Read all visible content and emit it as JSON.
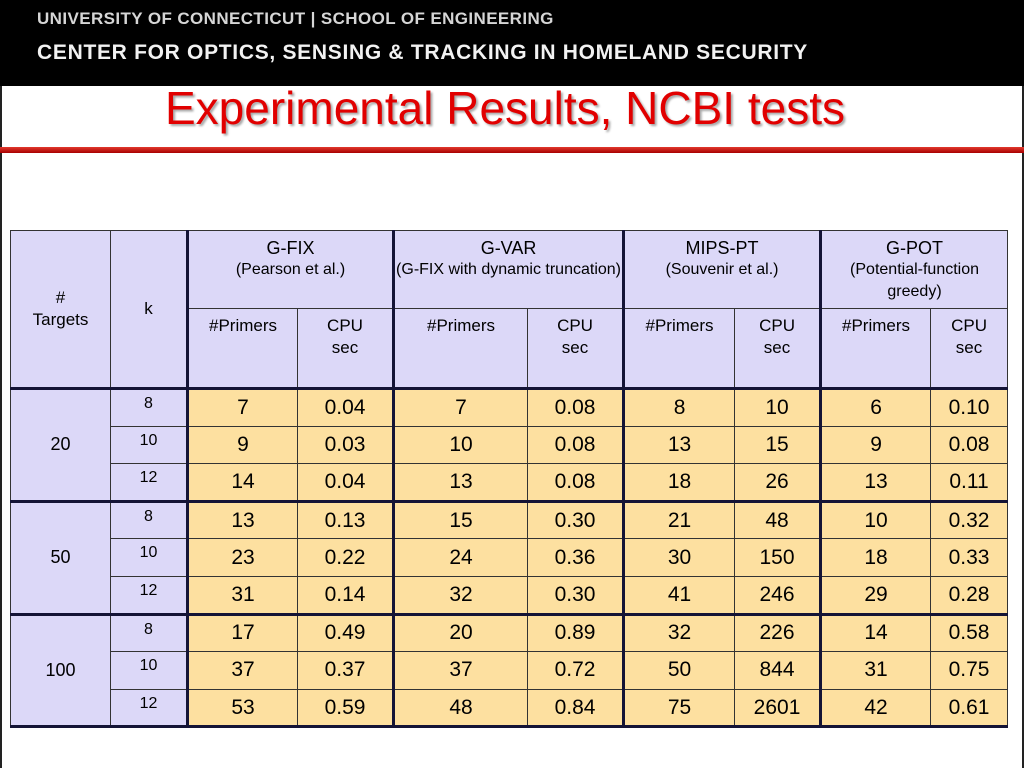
{
  "header": {
    "line1": "UNIVERSITY OF CONNECTICUT | SCHOOL OF ENGINEERING",
    "line2": "CENTER FOR OPTICS, SENSING & TRACKING IN HOMELAND SECURITY"
  },
  "title": "Experimental Results, NCBI tests",
  "colors": {
    "title": "#e10000",
    "header_bg": "#dcd8f8",
    "data_bg": "#fde0a0"
  },
  "table": {
    "head_targets": [
      "#",
      "Targets"
    ],
    "head_k": "k",
    "methods": [
      {
        "name": "G-FIX",
        "note": "(Pearson et al.)"
      },
      {
        "name": "G-VAR",
        "note": "(G-FIX with dynamic truncation)"
      },
      {
        "name": "MIPS-PT",
        "note": "(Souvenir et al.)"
      },
      {
        "name": "G-POT",
        "note": "(Potential-function greedy)"
      }
    ],
    "sub_primers": "#Primers",
    "sub_cpu": [
      "CPU",
      "sec"
    ],
    "groups": [
      {
        "targets": "20",
        "rows": [
          {
            "k": "8",
            "values": [
              "7",
              "0.04",
              "7",
              "0.08",
              "8",
              "10",
              "6",
              "0.10"
            ]
          },
          {
            "k": "10",
            "values": [
              "9",
              "0.03",
              "10",
              "0.08",
              "13",
              "15",
              "9",
              "0.08"
            ]
          },
          {
            "k": "12",
            "values": [
              "14",
              "0.04",
              "13",
              "0.08",
              "18",
              "26",
              "13",
              "0.11"
            ]
          }
        ]
      },
      {
        "targets": "50",
        "rows": [
          {
            "k": "8",
            "values": [
              "13",
              "0.13",
              "15",
              "0.30",
              "21",
              "48",
              "10",
              "0.32"
            ]
          },
          {
            "k": "10",
            "values": [
              "23",
              "0.22",
              "24",
              "0.36",
              "30",
              "150",
              "18",
              "0.33"
            ]
          },
          {
            "k": "12",
            "values": [
              "31",
              "0.14",
              "32",
              "0.30",
              "41",
              "246",
              "29",
              "0.28"
            ]
          }
        ]
      },
      {
        "targets": "100",
        "rows": [
          {
            "k": "8",
            "values": [
              "17",
              "0.49",
              "20",
              "0.89",
              "32",
              "226",
              "14",
              "0.58"
            ]
          },
          {
            "k": "10",
            "values": [
              "37",
              "0.37",
              "37",
              "0.72",
              "50",
              "844",
              "31",
              "0.75"
            ]
          },
          {
            "k": "12",
            "values": [
              "53",
              "0.59",
              "48",
              "0.84",
              "75",
              "2601",
              "42",
              "0.61"
            ]
          }
        ]
      }
    ]
  }
}
